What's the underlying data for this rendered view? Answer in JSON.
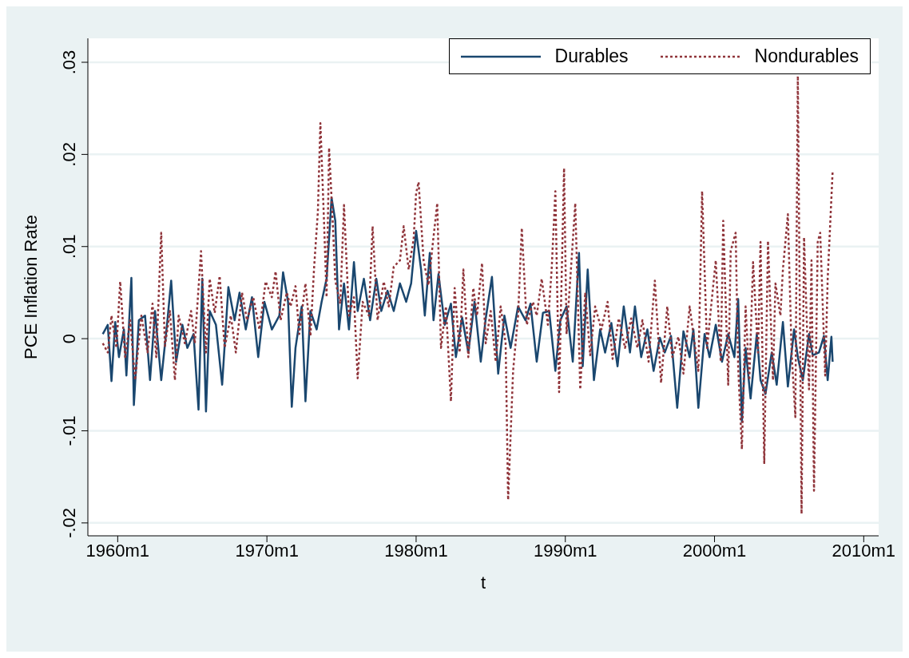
{
  "chart_data": {
    "type": "line",
    "xlabel": "t",
    "ylabel": "PCE Inflation Rate",
    "xlim": [
      "1958-01",
      "2011-01"
    ],
    "ylim": [
      -0.0214,
      0.0326
    ],
    "xticks": [
      {
        "value": "1960-01",
        "label": "1960m1"
      },
      {
        "value": "1970-01",
        "label": "1970m1"
      },
      {
        "value": "1980-01",
        "label": "1980m1"
      },
      {
        "value": "1990-01",
        "label": "1990m1"
      },
      {
        "value": "2000-01",
        "label": "2000m1"
      },
      {
        "value": "2010-01",
        "label": "2010m1"
      }
    ],
    "yticks": [
      {
        "value": -0.02,
        "label": "-.02"
      },
      {
        "value": -0.01,
        "label": "-.01"
      },
      0,
      {
        "value": 0.01,
        "label": ".01"
      },
      {
        "value": 0.02,
        "label": ".02"
      },
      {
        "value": 0.03,
        "label": ".03"
      }
    ],
    "grid": "y",
    "legend": "top right",
    "marker": "none",
    "series": [
      {
        "name": "Durables",
        "color": "#1a476f",
        "line_style": "solid",
        "x": [
          "1959-01",
          "1959-05",
          "1959-08",
          "1959-11",
          "1960-02",
          "1960-06",
          "1960-08",
          "1960-12",
          "1961-02",
          "1961-06",
          "1961-11",
          "1962-03",
          "1962-07",
          "1962-12",
          "1963-05",
          "1963-08",
          "1963-12",
          "1964-05",
          "1964-09",
          "1965-02",
          "1965-06",
          "1965-09",
          "1965-12",
          "1966-03",
          "1966-08",
          "1967-01",
          "1967-06",
          "1967-11",
          "1968-03",
          "1968-08",
          "1969-01",
          "1969-06",
          "1969-11",
          "1970-05",
          "1970-11",
          "1971-02",
          "1971-06",
          "1971-09",
          "1971-12",
          "1972-05",
          "1972-08",
          "1972-12",
          "1973-05",
          "1973-09",
          "1974-01",
          "1974-05",
          "1974-08",
          "1974-11",
          "1975-03",
          "1975-07",
          "1975-11",
          "1976-02",
          "1976-07",
          "1976-12",
          "1977-05",
          "1977-09",
          "1978-02",
          "1978-07",
          "1978-12",
          "1979-05",
          "1979-09",
          "1980-01",
          "1980-05",
          "1980-08",
          "1980-12",
          "1981-03",
          "1981-07",
          "1981-12",
          "1982-05",
          "1982-09",
          "1983-02",
          "1983-07",
          "1983-12",
          "1984-05",
          "1984-09",
          "1985-02",
          "1985-07",
          "1985-12",
          "1986-05",
          "1986-11",
          "1987-05",
          "1987-09",
          "1988-02",
          "1988-07",
          "1988-12",
          "1989-05",
          "1989-09",
          "1990-02",
          "1990-07",
          "1990-12",
          "1991-03",
          "1991-07",
          "1991-12",
          "1992-05",
          "1992-09",
          "1993-02",
          "1993-07",
          "1993-12",
          "1994-05",
          "1994-09",
          "1995-02",
          "1995-07",
          "1995-12",
          "1996-05",
          "1996-09",
          "1997-02",
          "1997-07",
          "1997-12",
          "1998-05",
          "1998-08",
          "1998-12",
          "1999-05",
          "1999-09",
          "2000-02",
          "2000-07",
          "2000-12",
          "2001-05",
          "2001-08",
          "2001-11",
          "2002-02",
          "2002-06",
          "2002-11",
          "2003-02",
          "2003-06",
          "2003-11",
          "2004-03",
          "2004-08",
          "2004-12",
          "2005-05",
          "2005-08",
          "2005-12",
          "2006-05",
          "2006-08",
          "2007-01",
          "2007-05",
          "2007-08",
          "2007-11",
          "2007-12"
        ],
        "values": [
          0.0005,
          0.0015,
          -0.0046,
          0.0018,
          -0.002,
          0.001,
          -0.004,
          0.0066,
          -0.0072,
          0.002,
          0.0025,
          -0.0045,
          0.003,
          -0.0045,
          0.002,
          0.0063,
          -0.0025,
          0.0015,
          -0.001,
          0.0005,
          -0.0077,
          0.0065,
          -0.0079,
          0.003,
          0.0015,
          -0.005,
          0.0056,
          0.002,
          0.005,
          0.001,
          0.0045,
          -0.002,
          0.004,
          0.001,
          0.0025,
          0.0072,
          0.004,
          -0.0074,
          -0.001,
          0.0035,
          -0.0068,
          0.003,
          0.001,
          0.004,
          0.0065,
          0.0153,
          0.0128,
          0.001,
          0.006,
          0.001,
          0.0083,
          0.003,
          0.0065,
          0.002,
          0.0065,
          0.003,
          0.0052,
          0.003,
          0.006,
          0.004,
          0.006,
          0.0117,
          0.0075,
          0.0025,
          0.0093,
          0.002,
          0.007,
          0.0015,
          0.0038,
          -0.002,
          0.0023,
          -0.0015,
          0.004,
          -0.0025,
          0.0022,
          0.0067,
          -0.0038,
          0.0025,
          -0.001,
          0.0035,
          0.002,
          0.0038,
          -0.0025,
          0.0028,
          0.003,
          -0.0035,
          0.002,
          0.0035,
          -0.0025,
          0.0093,
          -0.003,
          0.0075,
          -0.0045,
          0.001,
          -0.0015,
          0.0017,
          -0.003,
          0.0035,
          -0.0015,
          0.0035,
          -0.002,
          0.001,
          -0.0035,
          0.0001,
          -0.0015,
          0.0003,
          -0.0075,
          0.0008,
          -0.002,
          0.001,
          -0.0075,
          0.0005,
          -0.002,
          0.0015,
          -0.0025,
          0.0005,
          -0.002,
          0.0043,
          -0.009,
          -0.001,
          -0.0065,
          0.0005,
          -0.0045,
          -0.006,
          -0.0015,
          -0.005,
          0.0018,
          -0.0052,
          0.001,
          -0.002,
          -0.0045,
          0.0005,
          -0.0018,
          -0.0015,
          0.0003,
          -0.0045,
          0.0002,
          -0.0025
        ]
      },
      {
        "name": "Nondurables",
        "color": "#90353b",
        "line_style": "dotted",
        "x": [
          "1959-01",
          "1959-05",
          "1959-08",
          "1959-12",
          "1960-03",
          "1960-07",
          "1960-11",
          "1961-03",
          "1961-08",
          "1962-01",
          "1962-05",
          "1962-08",
          "1962-12",
          "1963-03",
          "1963-07",
          "1963-11",
          "1964-02",
          "1964-07",
          "1964-12",
          "1965-03",
          "1965-08",
          "1965-12",
          "1966-03",
          "1966-07",
          "1966-11",
          "1967-03",
          "1967-08",
          "1967-12",
          "1968-05",
          "1968-09",
          "1969-02",
          "1969-07",
          "1969-12",
          "1970-05",
          "1970-08",
          "1970-12",
          "1971-05",
          "1971-08",
          "1971-12",
          "1972-03",
          "1972-08",
          "1972-12",
          "1973-03",
          "1973-06",
          "1973-08",
          "1973-11",
          "1974-01",
          "1974-03",
          "1974-06",
          "1974-08",
          "1974-12",
          "1975-03",
          "1975-07",
          "1975-11",
          "1976-02",
          "1976-06",
          "1976-11",
          "1977-02",
          "1977-06",
          "1977-11",
          "1978-03",
          "1978-07",
          "1978-12",
          "1979-03",
          "1979-07",
          "1979-11",
          "1980-01",
          "1980-03",
          "1980-07",
          "1980-11",
          "1981-02",
          "1981-06",
          "1981-09",
          "1982-01",
          "1982-05",
          "1982-08",
          "1982-12",
          "1983-03",
          "1983-07",
          "1983-11",
          "1984-02",
          "1984-06",
          "1984-09",
          "1985-01",
          "1985-05",
          "1985-09",
          "1986-01",
          "1986-03",
          "1986-07",
          "1986-11",
          "1987-02",
          "1987-06",
          "1987-11",
          "1988-02",
          "1988-06",
          "1988-11",
          "1989-02",
          "1989-05",
          "1989-08",
          "1989-12",
          "1990-02",
          "1990-06",
          "1990-09",
          "1991-01",
          "1991-05",
          "1991-09",
          "1992-01",
          "1992-06",
          "1992-11",
          "1993-03",
          "1993-08",
          "1994-01",
          "1994-06",
          "1994-11",
          "1995-03",
          "1995-08",
          "1996-01",
          "1996-06",
          "1996-11",
          "1997-03",
          "1997-08",
          "1997-12",
          "1998-05",
          "1998-09",
          "1998-12",
          "1999-03",
          "1999-07",
          "1999-11",
          "2000-02",
          "2000-06",
          "2000-08",
          "2000-12",
          "2001-02",
          "2001-06",
          "2001-08",
          "2001-11",
          "2002-02",
          "2002-05",
          "2002-08",
          "2002-12",
          "2003-02",
          "2003-05",
          "2003-08",
          "2003-12",
          "2004-02",
          "2004-06",
          "2004-08",
          "2004-12",
          "2005-03",
          "2005-06",
          "2005-08",
          "2005-11",
          "2006-01",
          "2006-05",
          "2006-07",
          "2006-09",
          "2006-12",
          "2007-02",
          "2007-06",
          "2007-08",
          "2007-12"
        ],
        "values": [
          -0.0005,
          -0.0015,
          0.0025,
          -0.001,
          0.0062,
          -0.002,
          0.002,
          -0.0045,
          0.0025,
          -0.0015,
          0.0038,
          -0.002,
          0.0115,
          -0.0008,
          0.003,
          -0.0045,
          0.0025,
          -0.0005,
          0.003,
          -0.0005,
          0.0095,
          -0.0015,
          0.0065,
          0.0028,
          0.0068,
          -0.001,
          0.0025,
          -0.0015,
          0.005,
          0.002,
          0.0045,
          0.001,
          0.0062,
          0.0045,
          0.0073,
          0.002,
          0.005,
          0.0035,
          0.0057,
          0.0005,
          0.006,
          0.0003,
          0.0078,
          0.0138,
          0.0234,
          0.0125,
          0.0045,
          0.0207,
          0.0125,
          0.0063,
          0.0038,
          0.0145,
          0.0025,
          0.0045,
          -0.0043,
          0.004,
          0.0025,
          0.0122,
          0.002,
          0.0062,
          0.0035,
          0.0078,
          0.0085,
          0.0122,
          0.0075,
          0.0108,
          0.0158,
          0.017,
          0.0085,
          0.0058,
          0.0098,
          0.0147,
          -0.001,
          0.0035,
          -0.0068,
          0.0055,
          -0.0015,
          0.0075,
          -0.002,
          0.0055,
          0.0025,
          0.0082,
          -0.0005,
          0.003,
          -0.0025,
          0.0035,
          -0.0005,
          -0.0175,
          -0.0035,
          0.0025,
          0.012,
          0.0015,
          0.004,
          0.0025,
          0.0065,
          0.0015,
          0.0075,
          0.016,
          -0.0058,
          0.0185,
          0.0005,
          0.0085,
          0.0147,
          -0.0055,
          0.005,
          -0.0018,
          0.0035,
          0.001,
          0.004,
          -0.0022,
          0.0022,
          -0.001,
          0.0022,
          -0.001,
          0.002,
          -0.0025,
          0.0063,
          -0.0048,
          0.0035,
          -0.002,
          0.0002,
          -0.0038,
          0.0035,
          -0.0005,
          -0.0035,
          0.016,
          -0.001,
          0.0045,
          0.0085,
          -0.0025,
          0.0128,
          -0.005,
          0.0095,
          0.0115,
          -0.003,
          -0.012,
          0.0035,
          -0.0045,
          0.0083,
          -0.0015,
          0.0105,
          -0.0135,
          0.0106,
          -0.0045,
          0.006,
          0.0025,
          0.0075,
          0.0135,
          -0.0015,
          -0.0085,
          0.0285,
          -0.019,
          0.011,
          -0.0055,
          0.0085,
          -0.0165,
          0.0105,
          0.0115,
          -0.004,
          0.0065,
          0.0182
        ]
      }
    ]
  }
}
